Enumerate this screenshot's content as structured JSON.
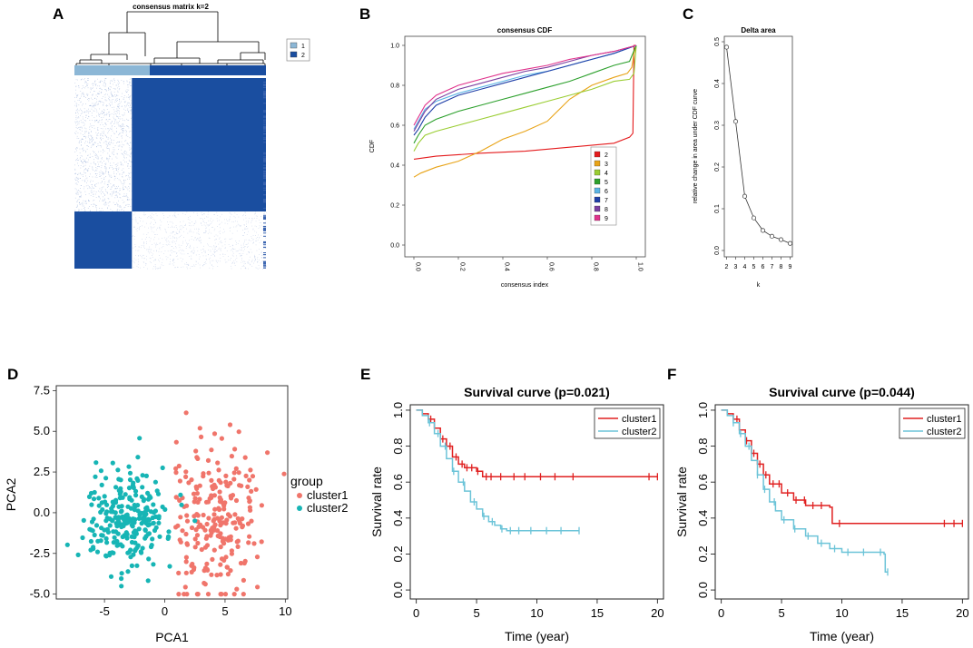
{
  "panels": [
    {
      "letter": "A"
    },
    {
      "letter": "B"
    },
    {
      "letter": "C"
    },
    {
      "letter": "D"
    },
    {
      "letter": "E"
    },
    {
      "letter": "F"
    }
  ],
  "colors": {
    "blue_dark": "#1a4ea0",
    "blue_light": "#8cb7d6",
    "red": "#e41a1c",
    "teal": "#17b5b5",
    "salmon": "#f0756b",
    "km_red": "#e02020",
    "km_cyan": "#6cc4d8"
  },
  "chart_data": [
    {
      "id": "A",
      "type": "heatmap",
      "title": "consensus matrix k=2",
      "legend": [
        {
          "label": "1",
          "color": "#8cb7d6"
        },
        {
          "label": "2",
          "color": "#1a4ea0"
        }
      ],
      "clusters": [
        {
          "name": "1",
          "fraction": 0.3
        },
        {
          "name": "2",
          "fraction": 0.7
        }
      ]
    },
    {
      "id": "B",
      "type": "line",
      "title": "consensus CDF",
      "xlabel": "consensus index",
      "ylabel": "CDF",
      "xlim": [
        0,
        1
      ],
      "ylim": [
        0,
        1
      ],
      "xticks": [
        "0.0",
        "0.2",
        "0.4",
        "0.6",
        "0.8",
        "1.0"
      ],
      "yticks": [
        "0.0",
        "0.2",
        "0.4",
        "0.6",
        "0.8",
        "1.0"
      ],
      "series": [
        {
          "name": "2",
          "color": "#e41a1c",
          "points": [
            [
              0,
              0.43
            ],
            [
              0.1,
              0.445
            ],
            [
              0.3,
              0.46
            ],
            [
              0.5,
              0.47
            ],
            [
              0.7,
              0.49
            ],
            [
              0.9,
              0.51
            ],
            [
              0.97,
              0.54
            ],
            [
              0.985,
              0.56
            ],
            [
              0.99,
              1.0
            ],
            [
              1,
              1.0
            ]
          ]
        },
        {
          "name": "3",
          "color": "#e8a317",
          "points": [
            [
              0,
              0.34
            ],
            [
              0.03,
              0.36
            ],
            [
              0.1,
              0.39
            ],
            [
              0.2,
              0.42
            ],
            [
              0.3,
              0.47
            ],
            [
              0.4,
              0.53
            ],
            [
              0.5,
              0.57
            ],
            [
              0.6,
              0.62
            ],
            [
              0.7,
              0.73
            ],
            [
              0.8,
              0.8
            ],
            [
              0.9,
              0.84
            ],
            [
              0.96,
              0.86
            ],
            [
              0.98,
              0.89
            ],
            [
              0.99,
              0.96
            ],
            [
              1,
              1.0
            ]
          ]
        },
        {
          "name": "4",
          "color": "#9acd32",
          "points": [
            [
              0,
              0.47
            ],
            [
              0.02,
              0.51
            ],
            [
              0.05,
              0.55
            ],
            [
              0.1,
              0.57
            ],
            [
              0.2,
              0.6
            ],
            [
              0.3,
              0.63
            ],
            [
              0.4,
              0.66
            ],
            [
              0.5,
              0.69
            ],
            [
              0.6,
              0.72
            ],
            [
              0.7,
              0.75
            ],
            [
              0.8,
              0.78
            ],
            [
              0.9,
              0.82
            ],
            [
              0.97,
              0.83
            ],
            [
              0.99,
              0.86
            ],
            [
              1,
              1.0
            ]
          ]
        },
        {
          "name": "5",
          "color": "#2ca02c",
          "points": [
            [
              0,
              0.51
            ],
            [
              0.02,
              0.55
            ],
            [
              0.05,
              0.6
            ],
            [
              0.1,
              0.63
            ],
            [
              0.2,
              0.67
            ],
            [
              0.3,
              0.7
            ],
            [
              0.4,
              0.73
            ],
            [
              0.5,
              0.76
            ],
            [
              0.6,
              0.79
            ],
            [
              0.7,
              0.82
            ],
            [
              0.8,
              0.86
            ],
            [
              0.9,
              0.9
            ],
            [
              0.97,
              0.92
            ],
            [
              1,
              1.0
            ]
          ]
        },
        {
          "name": "6",
          "color": "#5ab4e5",
          "points": [
            [
              0,
              0.58
            ],
            [
              0.02,
              0.62
            ],
            [
              0.05,
              0.68
            ],
            [
              0.1,
              0.72
            ],
            [
              0.2,
              0.76
            ],
            [
              0.3,
              0.79
            ],
            [
              0.4,
              0.82
            ],
            [
              0.5,
              0.85
            ],
            [
              0.6,
              0.87
            ],
            [
              0.7,
              0.9
            ],
            [
              0.8,
              0.93
            ],
            [
              0.9,
              0.96
            ],
            [
              1,
              1.0
            ]
          ]
        },
        {
          "name": "7",
          "color": "#1f3fa8",
          "points": [
            [
              0,
              0.55
            ],
            [
              0.02,
              0.58
            ],
            [
              0.05,
              0.64
            ],
            [
              0.1,
              0.7
            ],
            [
              0.2,
              0.75
            ],
            [
              0.3,
              0.78
            ],
            [
              0.4,
              0.81
            ],
            [
              0.5,
              0.84
            ],
            [
              0.6,
              0.87
            ],
            [
              0.7,
              0.9
            ],
            [
              0.8,
              0.93
            ],
            [
              0.9,
              0.96
            ],
            [
              1,
              1.0
            ]
          ]
        },
        {
          "name": "8",
          "color": "#7b3fa0",
          "points": [
            [
              0,
              0.57
            ],
            [
              0.02,
              0.61
            ],
            [
              0.05,
              0.67
            ],
            [
              0.1,
              0.73
            ],
            [
              0.2,
              0.78
            ],
            [
              0.3,
              0.81
            ],
            [
              0.4,
              0.84
            ],
            [
              0.5,
              0.87
            ],
            [
              0.6,
              0.89
            ],
            [
              0.7,
              0.92
            ],
            [
              0.8,
              0.95
            ],
            [
              0.9,
              0.97
            ],
            [
              1,
              1.0
            ]
          ]
        },
        {
          "name": "9",
          "color": "#e0338c",
          "points": [
            [
              0,
              0.6
            ],
            [
              0.02,
              0.64
            ],
            [
              0.05,
              0.7
            ],
            [
              0.1,
              0.75
            ],
            [
              0.2,
              0.8
            ],
            [
              0.3,
              0.83
            ],
            [
              0.4,
              0.86
            ],
            [
              0.5,
              0.88
            ],
            [
              0.6,
              0.9
            ],
            [
              0.7,
              0.93
            ],
            [
              0.8,
              0.95
            ],
            [
              0.9,
              0.97
            ],
            [
              1,
              1.0
            ]
          ]
        }
      ]
    },
    {
      "id": "C",
      "type": "line",
      "title": "Delta area",
      "xlabel": "k",
      "ylabel": "relative change in area under CDF curve",
      "xlim": [
        1.75,
        9.25
      ],
      "ylim": [
        0,
        0.5
      ],
      "xticks": [
        "2",
        "3",
        "4",
        "5",
        "6",
        "7",
        "8",
        "9"
      ],
      "yticks": [
        "0.0",
        "0.1",
        "0.2",
        "0.3",
        "0.4",
        "0.5"
      ],
      "x": [
        2,
        3,
        4,
        5,
        6,
        7,
        8,
        9
      ],
      "values": [
        0.487,
        0.309,
        0.13,
        0.078,
        0.048,
        0.034,
        0.026,
        0.017
      ]
    },
    {
      "id": "D",
      "type": "scatter",
      "xlabel": "PCA1",
      "ylabel": "PCA2",
      "xlim": [
        -9,
        10.2
      ],
      "ylim": [
        -5.3,
        7.8
      ],
      "xticks": [
        "-5",
        "0",
        "5",
        "10"
      ],
      "yticks": [
        "-5.0",
        "-2.5",
        "0.0",
        "2.5",
        "5.0",
        "7.5"
      ],
      "legend_title": "group",
      "series": [
        {
          "name": "cluster1",
          "color": "#f0756b",
          "center": [
            4.2,
            -0.3
          ],
          "spread": [
            2.4,
            2.6
          ],
          "n": 240
        },
        {
          "name": "cluster2",
          "color": "#17b5b5",
          "center": [
            -3.2,
            -0.3
          ],
          "spread": [
            2.3,
            1.6
          ],
          "n": 260
        }
      ]
    },
    {
      "id": "E",
      "type": "line",
      "title": "Survival curve (p=0.021)",
      "xlabel": "Time (year)",
      "ylabel": "Survival rate",
      "xlim": [
        -0.5,
        20.5
      ],
      "ylim": [
        -0.05,
        1.03
      ],
      "xticks": [
        "0",
        "5",
        "10",
        "15",
        "20"
      ],
      "yticks": [
        "0.0",
        "0.2",
        "0.4",
        "0.6",
        "0.8",
        "1.0"
      ],
      "legend": [
        "cluster1",
        "cluster2"
      ],
      "series": [
        {
          "name": "cluster1",
          "color": "#e02020",
          "points": [
            [
              0,
              1.0
            ],
            [
              0.5,
              0.98
            ],
            [
              1,
              0.95
            ],
            [
              1.5,
              0.9
            ],
            [
              2,
              0.84
            ],
            [
              2.5,
              0.8
            ],
            [
              3,
              0.74
            ],
            [
              3.5,
              0.7
            ],
            [
              4,
              0.68
            ],
            [
              5,
              0.66
            ],
            [
              5.5,
              0.63
            ],
            [
              20,
              0.63
            ]
          ],
          "censor_x": [
            1.2,
            2.2,
            2.8,
            3.3,
            3.8,
            4.2,
            4.6,
            5.1,
            5.8,
            6.2,
            7.0,
            8.1,
            9.0,
            10.3,
            11.5,
            13.0,
            19.3,
            20
          ]
        },
        {
          "name": "cluster2",
          "color": "#6cc4d8",
          "points": [
            [
              0,
              1.0
            ],
            [
              0.5,
              0.97
            ],
            [
              1,
              0.93
            ],
            [
              1.5,
              0.87
            ],
            [
              2,
              0.8
            ],
            [
              2.5,
              0.73
            ],
            [
              3,
              0.66
            ],
            [
              3.5,
              0.6
            ],
            [
              4,
              0.55
            ],
            [
              4.5,
              0.49
            ],
            [
              5,
              0.45
            ],
            [
              5.5,
              0.41
            ],
            [
              6,
              0.38
            ],
            [
              6.5,
              0.36
            ],
            [
              7,
              0.34
            ],
            [
              7.5,
              0.33
            ],
            [
              13.5,
              0.33
            ]
          ],
          "censor_x": [
            1.1,
            1.8,
            2.4,
            3.1,
            3.9,
            4.8,
            5.6,
            6.3,
            7.1,
            7.8,
            8.5,
            9.5,
            10.8,
            12.0,
            13.5
          ]
        }
      ]
    },
    {
      "id": "F",
      "type": "line",
      "title": "Survival curve (p=0.044)",
      "xlabel": "Time (year)",
      "ylabel": "Survival rate",
      "xlim": [
        -0.5,
        20.5
      ],
      "ylim": [
        -0.05,
        1.03
      ],
      "xticks": [
        "0",
        "5",
        "10",
        "15",
        "20"
      ],
      "yticks": [
        "0.0",
        "0.2",
        "0.4",
        "0.6",
        "0.8",
        "1.0"
      ],
      "legend": [
        "cluster1",
        "cluster2"
      ],
      "series": [
        {
          "name": "cluster1",
          "color": "#e02020",
          "points": [
            [
              0,
              1.0
            ],
            [
              0.5,
              0.98
            ],
            [
              1,
              0.95
            ],
            [
              1.5,
              0.89
            ],
            [
              2,
              0.83
            ],
            [
              2.5,
              0.76
            ],
            [
              3,
              0.7
            ],
            [
              3.5,
              0.64
            ],
            [
              4,
              0.59
            ],
            [
              5,
              0.54
            ],
            [
              6,
              0.5
            ],
            [
              7,
              0.47
            ],
            [
              9,
              0.46
            ],
            [
              9.2,
              0.37
            ],
            [
              20,
              0.37
            ]
          ],
          "censor_x": [
            1.3,
            2.1,
            2.7,
            3.2,
            3.7,
            4.3,
            4.8,
            5.5,
            6.2,
            6.9,
            7.6,
            8.3,
            9.8,
            18.5,
            19.3,
            20
          ]
        },
        {
          "name": "cluster2",
          "color": "#6cc4d8",
          "points": [
            [
              0,
              1.0
            ],
            [
              0.5,
              0.97
            ],
            [
              1,
              0.93
            ],
            [
              1.5,
              0.87
            ],
            [
              2,
              0.8
            ],
            [
              2.5,
              0.72
            ],
            [
              3,
              0.64
            ],
            [
              3.5,
              0.56
            ],
            [
              4,
              0.49
            ],
            [
              4.5,
              0.44
            ],
            [
              5,
              0.39
            ],
            [
              6,
              0.34
            ],
            [
              7,
              0.3
            ],
            [
              8,
              0.26
            ],
            [
              9,
              0.23
            ],
            [
              10,
              0.21
            ],
            [
              13.5,
              0.2
            ],
            [
              13.6,
              0.1
            ],
            [
              13.8,
              0.1
            ]
          ],
          "censor_x": [
            1.0,
            1.6,
            2.3,
            3.0,
            3.6,
            4.4,
            5.2,
            6.1,
            7.2,
            8.3,
            9.4,
            10.5,
            11.8,
            13.2,
            13.8
          ]
        }
      ]
    }
  ]
}
